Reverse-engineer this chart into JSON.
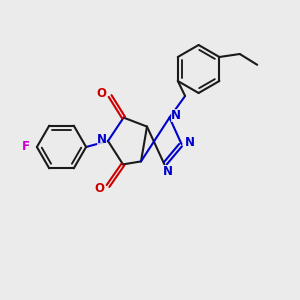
{
  "background_color": "#ebebeb",
  "bond_color": "#1a1a1a",
  "n_color": "#0000cc",
  "o_color": "#cc0000",
  "f_color": "#cc00cc",
  "line_width": 1.5,
  "figsize": [
    3.0,
    3.0
  ],
  "dpi": 100,
  "xlim": [
    0,
    10
  ],
  "ylim": [
    0,
    10
  ]
}
